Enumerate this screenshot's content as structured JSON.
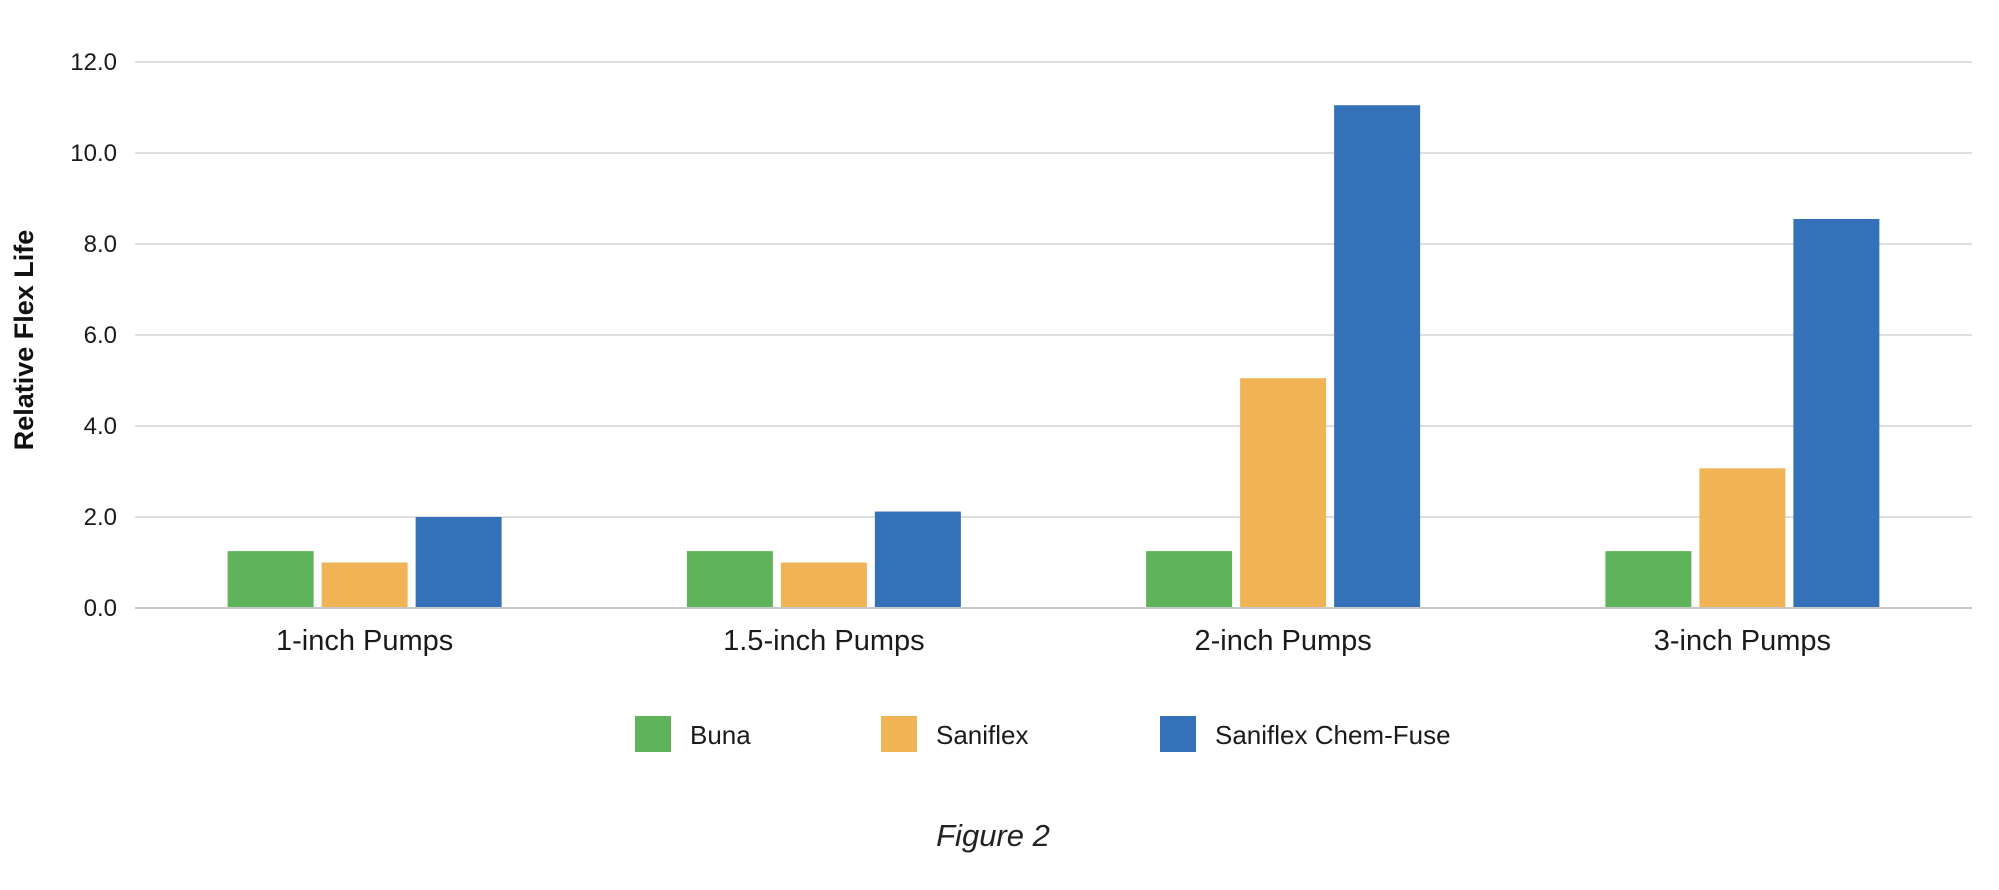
{
  "chart_data": {
    "type": "bar",
    "categories": [
      "1-inch Pumps",
      "1.5-inch Pumps",
      "2-inch Pumps",
      "3-inch Pumps"
    ],
    "series": [
      {
        "name": "Buna",
        "color": "#5fb35a",
        "values": [
          1.25,
          1.25,
          1.25,
          1.25
        ]
      },
      {
        "name": "Saniflex",
        "color": "#f0b356",
        "values": [
          1.0,
          1.0,
          5.05,
          3.07
        ]
      },
      {
        "name": "Saniflex Chem-Fuse",
        "color": "#3571b8",
        "values": [
          2.0,
          2.12,
          11.05,
          8.55
        ]
      }
    ],
    "ylabel": "Relative Flex Life",
    "xlabel": "",
    "ylim": [
      0,
      12
    ],
    "yticks": [
      "0.0",
      "2.0",
      "4.0",
      "6.0",
      "8.0",
      "10.0",
      "12.0"
    ],
    "grid": true,
    "legend_position": "bottom-center",
    "caption": "Figure 2"
  }
}
